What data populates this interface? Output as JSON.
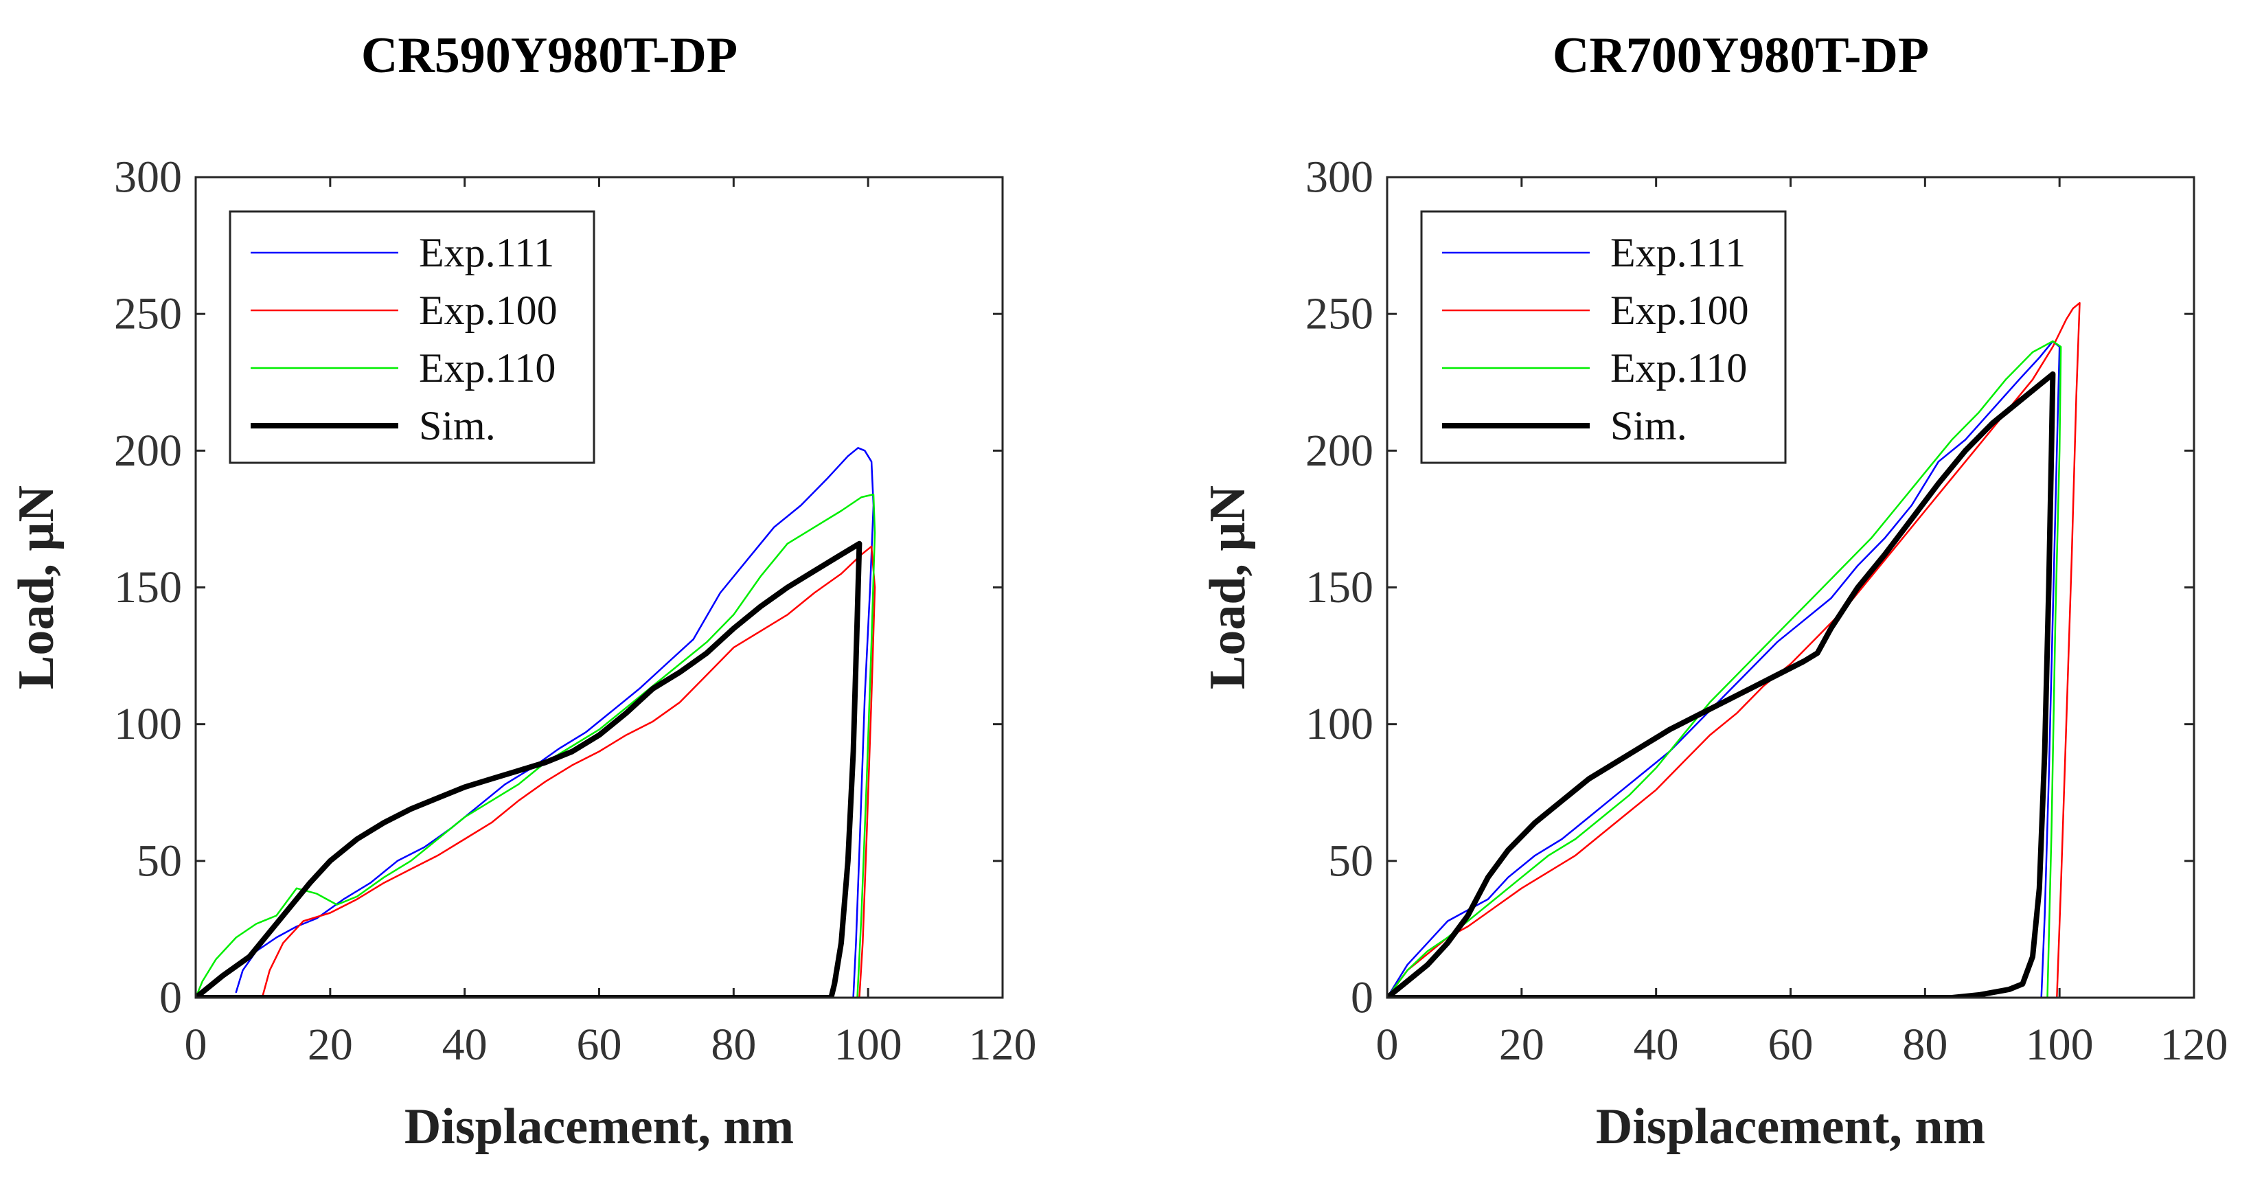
{
  "chart_data": [
    {
      "type": "line",
      "title": "CR590Y980T-DP",
      "xlabel": "Displacement, nm",
      "ylabel": "Load, μN",
      "xlim": [
        0,
        120
      ],
      "ylim": [
        0,
        300
      ],
      "xticks": [
        0,
        20,
        40,
        60,
        80,
        100,
        120
      ],
      "yticks": [
        0,
        50,
        100,
        150,
        200,
        250,
        300
      ],
      "xtick_labels": [
        "0",
        "20",
        "40",
        "60",
        "80",
        "100",
        "120"
      ],
      "ytick_labels": [
        "0",
        "50",
        "100",
        "150",
        "200",
        "250",
        "300"
      ],
      "legend_position": "top-left",
      "series": [
        {
          "name": "Exp.111",
          "color": "#0000ff",
          "width": 2.5,
          "x": [
            6,
            7,
            9,
            12,
            15,
            18,
            22,
            26,
            30,
            34,
            38,
            42,
            46,
            50,
            54,
            58,
            62,
            66,
            70,
            74,
            78,
            82,
            86,
            90,
            94,
            97,
            98.5,
            99.5,
            100.5,
            100.8,
            100.3,
            99.5,
            98.8,
            98.2,
            97.8
          ],
          "y": [
            2,
            10,
            17,
            22,
            26,
            29,
            36,
            42,
            50,
            55,
            62,
            70,
            78,
            84,
            91,
            97,
            105,
            113,
            122,
            131,
            148,
            160,
            172,
            180,
            190,
            198,
            201,
            200,
            196,
            180,
            150,
            110,
            60,
            20,
            0
          ]
        },
        {
          "name": "Exp.100",
          "color": "#ff0000",
          "width": 2.5,
          "x": [
            10,
            11,
            13,
            16,
            20,
            24,
            28,
            32,
            36,
            40,
            44,
            48,
            52,
            56,
            60,
            64,
            68,
            72,
            76,
            80,
            84,
            88,
            92,
            96,
            99,
            100.5,
            101,
            100.5,
            99.8,
            99.2,
            98.7
          ],
          "y": [
            1,
            10,
            20,
            28,
            31,
            36,
            42,
            47,
            52,
            58,
            64,
            72,
            79,
            85,
            90,
            96,
            101,
            108,
            118,
            128,
            134,
            140,
            148,
            155,
            162,
            165,
            150,
            110,
            60,
            20,
            0
          ]
        },
        {
          "name": "Exp.110",
          "color": "#00ee00",
          "width": 2.5,
          "x": [
            0,
            1,
            3,
            6,
            9,
            12,
            15,
            18,
            21,
            24,
            28,
            32,
            36,
            40,
            44,
            48,
            52,
            56,
            60,
            64,
            68,
            72,
            76,
            80,
            84,
            88,
            92,
            96,
            99,
            100.8,
            101,
            100.5,
            99.8,
            99,
            98.4
          ],
          "y": [
            0,
            6,
            14,
            22,
            27,
            30,
            40,
            38,
            34,
            37,
            44,
            50,
            58,
            66,
            72,
            78,
            86,
            92,
            98,
            106,
            114,
            122,
            130,
            140,
            154,
            166,
            172,
            178,
            183,
            184,
            170,
            130,
            80,
            30,
            0
          ]
        },
        {
          "name": "Sim.",
          "color": "#000000",
          "width": 8,
          "x": [
            0,
            4,
            8,
            11,
            14,
            17,
            20,
            24,
            28,
            32,
            36,
            40,
            44,
            48,
            52,
            56,
            60,
            64,
            68,
            72,
            76,
            80,
            84,
            88,
            92,
            96,
            98.7,
            98.4,
            97.8,
            97,
            96,
            95,
            94.5,
            90,
            70,
            50,
            30,
            10,
            0
          ],
          "y": [
            0,
            8,
            15,
            24,
            33,
            42,
            50,
            58,
            64,
            69,
            73,
            77,
            80,
            83,
            86,
            90,
            96,
            104,
            113,
            119,
            126,
            135,
            143,
            150,
            156,
            162,
            166,
            140,
            90,
            50,
            20,
            5,
            0,
            0,
            0,
            0,
            0,
            0,
            0
          ]
        }
      ]
    },
    {
      "type": "line",
      "title": "CR700Y980T-DP",
      "xlabel": "Displacement, nm",
      "ylabel": "Load, μN",
      "xlim": [
        0,
        120
      ],
      "ylim": [
        0,
        300
      ],
      "xticks": [
        0,
        20,
        40,
        60,
        80,
        100,
        120
      ],
      "yticks": [
        0,
        50,
        100,
        150,
        200,
        250,
        300
      ],
      "xtick_labels": [
        "0",
        "20",
        "40",
        "60",
        "80",
        "100",
        "120"
      ],
      "ytick_labels": [
        "0",
        "50",
        "100",
        "150",
        "200",
        "250",
        "300"
      ],
      "legend_position": "top-left",
      "series": [
        {
          "name": "Exp.111",
          "color": "#0000ff",
          "width": 2.5,
          "x": [
            0,
            3,
            6,
            9,
            12,
            15,
            18,
            22,
            26,
            30,
            34,
            38,
            42,
            46,
            50,
            54,
            58,
            62,
            66,
            70,
            74,
            78,
            82,
            86,
            90,
            94,
            97,
            99,
            100,
            99.6,
            99,
            98.4,
            97.8,
            97.3
          ],
          "y": [
            0,
            12,
            20,
            28,
            32,
            36,
            44,
            52,
            58,
            66,
            74,
            82,
            90,
            100,
            110,
            120,
            130,
            138,
            146,
            158,
            168,
            180,
            196,
            204,
            215,
            226,
            234,
            240,
            238,
            200,
            140,
            80,
            30,
            0
          ]
        },
        {
          "name": "Exp.100",
          "color": "#ff0000",
          "width": 2.5,
          "x": [
            0,
            3,
            6,
            9,
            12,
            16,
            20,
            24,
            28,
            32,
            36,
            40,
            44,
            48,
            52,
            56,
            60,
            64,
            68,
            72,
            76,
            80,
            84,
            88,
            92,
            96,
            99,
            101,
            102,
            103,
            102.5,
            101.8,
            101,
            100.2,
            99.6
          ],
          "y": [
            0,
            10,
            16,
            22,
            26,
            33,
            40,
            46,
            52,
            60,
            68,
            76,
            86,
            96,
            104,
            114,
            122,
            132,
            142,
            154,
            166,
            178,
            190,
            202,
            214,
            226,
            238,
            248,
            252,
            254,
            220,
            160,
            100,
            40,
            0
          ]
        },
        {
          "name": "Exp.110",
          "color": "#00ee00",
          "width": 2.5,
          "x": [
            0,
            3,
            6,
            9,
            12,
            16,
            20,
            24,
            28,
            32,
            36,
            40,
            44,
            48,
            52,
            56,
            60,
            64,
            68,
            72,
            76,
            80,
            84,
            88,
            92,
            96,
            99,
            100.2,
            100,
            99.4,
            98.8,
            98.2
          ],
          "y": [
            0,
            10,
            17,
            22,
            28,
            36,
            44,
            52,
            58,
            66,
            74,
            84,
            96,
            108,
            118,
            128,
            138,
            148,
            158,
            168,
            180,
            192,
            204,
            214,
            226,
            236,
            240,
            238,
            200,
            140,
            60,
            0
          ]
        },
        {
          "name": "Sim.",
          "color": "#000000",
          "width": 8,
          "x": [
            0,
            3,
            6,
            9,
            12,
            15,
            18,
            22,
            26,
            30,
            34,
            38,
            42,
            46,
            50,
            54,
            58,
            62,
            64,
            66,
            70,
            74,
            78,
            82,
            86,
            90,
            94,
            97,
            99,
            98.8,
            98.4,
            97.8,
            97,
            96,
            94.5,
            92.5,
            88,
            84,
            70,
            50,
            30,
            10,
            0
          ],
          "y": [
            0,
            6,
            12,
            20,
            30,
            44,
            54,
            64,
            72,
            80,
            86,
            92,
            98,
            103,
            108,
            113,
            118,
            123,
            126,
            135,
            150,
            162,
            175,
            188,
            200,
            210,
            218,
            224,
            228,
            200,
            150,
            90,
            40,
            15,
            5,
            3,
            1,
            0,
            0,
            0,
            0,
            0,
            0
          ]
        }
      ]
    }
  ]
}
